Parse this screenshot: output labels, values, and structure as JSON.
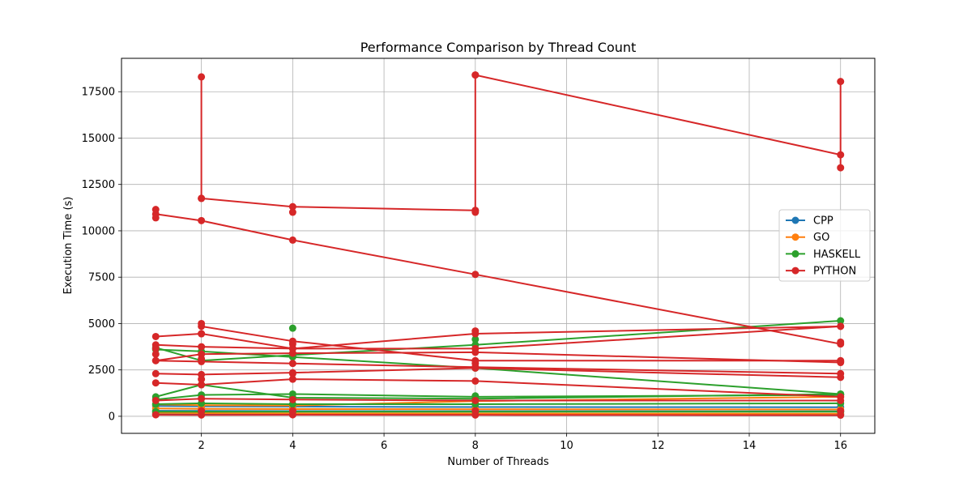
{
  "chart_data": {
    "type": "line",
    "title": "Performance Comparison by Thread Count",
    "xlabel": "Number of Threads",
    "ylabel": "Execution Time (s)",
    "xlim": [
      0.25,
      16.75
    ],
    "ylim": [
      -920,
      19300
    ],
    "xticks": [
      2,
      4,
      6,
      8,
      10,
      12,
      14,
      16
    ],
    "yticks": [
      0,
      2500,
      5000,
      7500,
      10000,
      12500,
      15000,
      17500
    ],
    "grid": true,
    "legend_position": "center-right",
    "series": [
      {
        "name": "CPP",
        "color": "#1f77b4",
        "lines": [
          {
            "x": [
              1,
              2,
              4,
              8,
              16
            ],
            "y": [
              120,
              110,
              105,
              100,
              95
            ]
          },
          {
            "x": [
              1,
              2,
              4,
              8,
              16
            ],
            "y": [
              300,
              290,
              280,
              275,
              270
            ]
          },
          {
            "x": [
              1,
              2,
              4,
              8,
              16
            ],
            "y": [
              560,
              540,
              520,
              500,
              490
            ]
          }
        ]
      },
      {
        "name": "GO",
        "color": "#ff7f0e",
        "lines": [
          {
            "x": [
              1,
              2,
              4,
              8,
              16
            ],
            "y": [
              180,
              170,
              160,
              150,
              140
            ]
          },
          {
            "x": [
              1,
              2,
              4,
              8,
              16
            ],
            "y": [
              420,
              400,
              390,
              380,
              370
            ]
          },
          {
            "x": [
              1,
              2,
              4,
              8,
              16
            ],
            "y": [
              640,
              600,
              580,
              820,
              1050
            ]
          }
        ]
      },
      {
        "name": "HASKELL",
        "color": "#2ca02c",
        "lines": [
          {
            "x": [
              1,
              2,
              4,
              8,
              16
            ],
            "y": [
              3700,
              3000,
              3300,
              3850,
              5150
            ]
          },
          {
            "x": [
              1,
              2,
              4,
              8,
              16
            ],
            "y": [
              3600,
              3500,
              3200,
              2600,
              1200
            ]
          },
          {
            "x": [
              1,
              2,
              4,
              8,
              16
            ],
            "y": [
              1050,
              1700,
              1000,
              950,
              1200
            ]
          },
          {
            "x": [
              1,
              2,
              4,
              8,
              16
            ],
            "y": [
              900,
              1150,
              1200,
              1050,
              1150
            ]
          },
          {
            "x": [
              1,
              2,
              4,
              8,
              16
            ],
            "y": [
              650,
              700,
              650,
              650,
              700
            ]
          },
          {
            "x": [
              1,
              2,
              4,
              8,
              16
            ],
            "y": [
              250,
              250,
              250,
              250,
              250
            ]
          }
        ],
        "points": [
          {
            "x": 4,
            "y": 4750
          },
          {
            "x": 8,
            "y": 4150
          },
          {
            "x": 8,
            "y": 1100
          }
        ]
      },
      {
        "name": "PYTHON",
        "color": "#d62728",
        "lines": [
          {
            "x": [
              1,
              2,
              4,
              8,
              16
            ],
            "y": [
              10900,
              10550,
              9500,
              7650,
              3900
            ]
          },
          {
            "x": [
              2,
              4,
              8
            ],
            "y": [
              11750,
              11300,
              11100
            ]
          },
          {
            "x": [
              2,
              2
            ],
            "y": [
              11750,
              18300
            ]
          },
          {
            "x": [
              8,
              8
            ],
            "y": [
              11100,
              18400
            ]
          },
          {
            "x": [
              8,
              16
            ],
            "y": [
              18400,
              14100
            ]
          },
          {
            "x": [
              16,
              16
            ],
            "y": [
              13400,
              18050
            ]
          },
          {
            "x": [
              1,
              2,
              4,
              8,
              16
            ],
            "y": [
              4300,
              4450,
              3650,
              4450,
              4850
            ]
          },
          {
            "x": [
              2,
              4,
              8,
              16
            ],
            "y": [
              4850,
              4050,
              3000,
              3000
            ]
          },
          {
            "x": [
              1,
              2,
              4,
              8,
              16
            ],
            "y": [
              3850,
              3750,
              3650,
              3650,
              4850
            ]
          },
          {
            "x": [
              1,
              2,
              4,
              8,
              16
            ],
            "y": [
              3000,
              3350,
              3400,
              3450,
              2900
            ]
          },
          {
            "x": [
              1,
              2,
              4,
              8,
              16
            ],
            "y": [
              3000,
              2950,
              2850,
              2650,
              2300
            ]
          },
          {
            "x": [
              1,
              2,
              4,
              8,
              16
            ],
            "y": [
              2300,
              2250,
              2350,
              2600,
              2100
            ]
          },
          {
            "x": [
              1,
              2,
              4,
              8,
              16
            ],
            "y": [
              1800,
              1700,
              2000,
              1900,
              1050
            ]
          },
          {
            "x": [
              1,
              2,
              4,
              8,
              16
            ],
            "y": [
              850,
              950,
              900,
              850,
              850
            ]
          },
          {
            "x": [
              1,
              2,
              4,
              8,
              16
            ],
            "y": [
              80,
              70,
              80,
              70,
              60
            ]
          }
        ],
        "points": [
          {
            "x": 1,
            "y": 11150
          },
          {
            "x": 1,
            "y": 10700
          },
          {
            "x": 1,
            "y": 3650
          },
          {
            "x": 1,
            "y": 3350
          },
          {
            "x": 2,
            "y": 5000
          },
          {
            "x": 2,
            "y": 4450
          },
          {
            "x": 2,
            "y": 3100
          },
          {
            "x": 2,
            "y": 2000
          },
          {
            "x": 2,
            "y": 300
          },
          {
            "x": 4,
            "y": 11000
          },
          {
            "x": 4,
            "y": 3900
          },
          {
            "x": 4,
            "y": 3650
          },
          {
            "x": 4,
            "y": 2300
          },
          {
            "x": 4,
            "y": 300
          },
          {
            "x": 8,
            "y": 11000
          },
          {
            "x": 8,
            "y": 4600
          },
          {
            "x": 8,
            "y": 2850
          },
          {
            "x": 8,
            "y": 2650
          },
          {
            "x": 8,
            "y": 300
          },
          {
            "x": 16,
            "y": 4000
          },
          {
            "x": 16,
            "y": 2950
          },
          {
            "x": 16,
            "y": 300
          }
        ]
      }
    ]
  }
}
